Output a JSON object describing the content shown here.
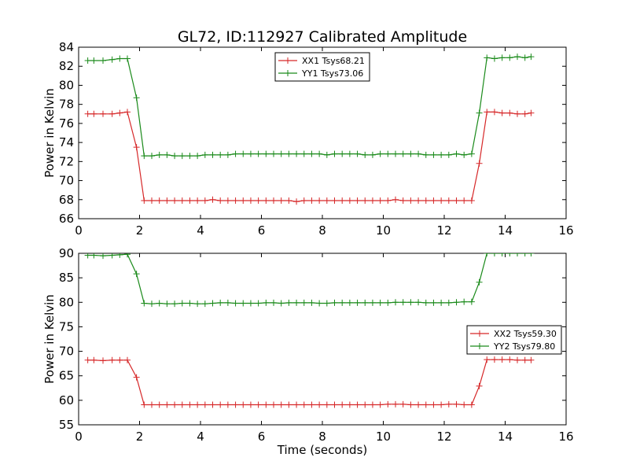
{
  "title": "GL72, ID:112927 Calibrated Amplitude",
  "colors": {
    "xx": "#d62728",
    "yy": "#1a8a1a"
  },
  "chart_data": [
    {
      "type": "line",
      "ylabel": "Power in Kelvin",
      "xlabel": "",
      "xlim": [
        0,
        16
      ],
      "ylim": [
        66,
        84
      ],
      "xticks": [
        0,
        2,
        4,
        6,
        8,
        10,
        12,
        14,
        16
      ],
      "yticks": [
        66,
        68,
        70,
        72,
        74,
        76,
        78,
        80,
        82,
        84
      ],
      "legend_position": "top-center",
      "x": [
        0.3,
        0.5,
        0.8,
        1.1,
        1.35,
        1.6,
        1.9,
        2.15,
        2.4,
        2.65,
        2.9,
        3.15,
        3.4,
        3.65,
        3.9,
        4.15,
        4.4,
        4.65,
        4.9,
        5.15,
        5.4,
        5.65,
        5.9,
        6.15,
        6.4,
        6.65,
        6.9,
        7.15,
        7.4,
        7.65,
        7.9,
        8.15,
        8.4,
        8.65,
        8.9,
        9.15,
        9.4,
        9.65,
        9.9,
        10.15,
        10.4,
        10.65,
        10.9,
        11.15,
        11.4,
        11.65,
        11.9,
        12.15,
        12.4,
        12.65,
        12.9,
        13.15,
        13.4,
        13.65,
        13.9,
        14.15,
        14.4,
        14.65,
        14.85
      ],
      "series": [
        {
          "name": "XX1 Tsys68.21",
          "color": "#d62728",
          "values": [
            77.0,
            77.0,
            77.0,
            77.0,
            77.1,
            77.2,
            73.5,
            67.9,
            67.9,
            67.9,
            67.9,
            67.9,
            67.9,
            67.9,
            67.9,
            67.9,
            68.0,
            67.9,
            67.9,
            67.9,
            67.9,
            67.9,
            67.9,
            67.9,
            67.9,
            67.9,
            67.9,
            67.8,
            67.9,
            67.9,
            67.9,
            67.9,
            67.9,
            67.9,
            67.9,
            67.9,
            67.9,
            67.9,
            67.9,
            67.9,
            68.0,
            67.9,
            67.9,
            67.9,
            67.9,
            67.9,
            67.9,
            67.9,
            67.9,
            67.9,
            67.9,
            71.8,
            77.2,
            77.2,
            77.1,
            77.1,
            77.0,
            77.0,
            77.1
          ]
        },
        {
          "name": "YY1 Tsys73.06",
          "color": "#1a8a1a",
          "values": [
            82.6,
            82.6,
            82.6,
            82.7,
            82.8,
            82.8,
            78.7,
            72.6,
            72.6,
            72.7,
            72.7,
            72.6,
            72.6,
            72.6,
            72.6,
            72.7,
            72.7,
            72.7,
            72.7,
            72.8,
            72.8,
            72.8,
            72.8,
            72.8,
            72.8,
            72.8,
            72.8,
            72.8,
            72.8,
            72.8,
            72.8,
            72.7,
            72.8,
            72.8,
            72.8,
            72.8,
            72.7,
            72.7,
            72.8,
            72.8,
            72.8,
            72.8,
            72.8,
            72.8,
            72.7,
            72.7,
            72.7,
            72.7,
            72.8,
            72.7,
            72.8,
            77.1,
            82.9,
            82.8,
            82.9,
            82.9,
            83.0,
            82.9,
            83.0
          ]
        }
      ]
    },
    {
      "type": "line",
      "ylabel": "Power in Kelvin",
      "xlabel": "Time (seconds)",
      "xlim": [
        0,
        16
      ],
      "ylim": [
        55,
        90
      ],
      "xticks": [
        0,
        2,
        4,
        6,
        8,
        10,
        12,
        14,
        16
      ],
      "yticks": [
        55,
        60,
        65,
        70,
        75,
        80,
        85,
        90
      ],
      "legend_position": "center-right",
      "x": [
        0.3,
        0.5,
        0.8,
        1.1,
        1.35,
        1.6,
        1.9,
        2.15,
        2.4,
        2.65,
        2.9,
        3.15,
        3.4,
        3.65,
        3.9,
        4.15,
        4.4,
        4.65,
        4.9,
        5.15,
        5.4,
        5.65,
        5.9,
        6.15,
        6.4,
        6.65,
        6.9,
        7.15,
        7.4,
        7.65,
        7.9,
        8.15,
        8.4,
        8.65,
        8.9,
        9.15,
        9.4,
        9.65,
        9.9,
        10.15,
        10.4,
        10.65,
        10.9,
        11.15,
        11.4,
        11.65,
        11.9,
        12.15,
        12.4,
        12.65,
        12.9,
        13.15,
        13.4,
        13.65,
        13.9,
        14.15,
        14.4,
        14.65,
        14.85
      ],
      "series": [
        {
          "name": "XX2 Tsys59.30",
          "color": "#d62728",
          "values": [
            68.2,
            68.2,
            68.1,
            68.2,
            68.2,
            68.2,
            64.7,
            59.1,
            59.1,
            59.1,
            59.1,
            59.1,
            59.1,
            59.1,
            59.1,
            59.1,
            59.1,
            59.1,
            59.1,
            59.1,
            59.1,
            59.1,
            59.1,
            59.1,
            59.1,
            59.1,
            59.1,
            59.1,
            59.1,
            59.1,
            59.1,
            59.1,
            59.1,
            59.1,
            59.1,
            59.1,
            59.1,
            59.1,
            59.1,
            59.2,
            59.2,
            59.2,
            59.1,
            59.1,
            59.1,
            59.1,
            59.1,
            59.2,
            59.2,
            59.1,
            59.1,
            62.9,
            68.3,
            68.3,
            68.3,
            68.3,
            68.2,
            68.2,
            68.2
          ]
        },
        {
          "name": "YY2 Tsys79.80",
          "color": "#1a8a1a",
          "values": [
            89.6,
            89.6,
            89.5,
            89.6,
            89.7,
            89.8,
            85.8,
            79.8,
            79.7,
            79.8,
            79.7,
            79.7,
            79.8,
            79.8,
            79.7,
            79.7,
            79.8,
            79.9,
            79.9,
            79.8,
            79.8,
            79.8,
            79.8,
            79.9,
            79.9,
            79.8,
            79.9,
            79.9,
            79.9,
            79.9,
            79.8,
            79.8,
            79.9,
            79.9,
            79.9,
            79.9,
            79.9,
            79.9,
            79.9,
            79.9,
            80.0,
            80.0,
            80.0,
            80.0,
            79.9,
            79.9,
            79.9,
            79.9,
            80.0,
            80.1,
            80.1,
            84.1,
            90.0,
            90.0,
            90.0,
            90.0,
            90.0,
            90.0,
            90.0
          ]
        }
      ]
    }
  ]
}
